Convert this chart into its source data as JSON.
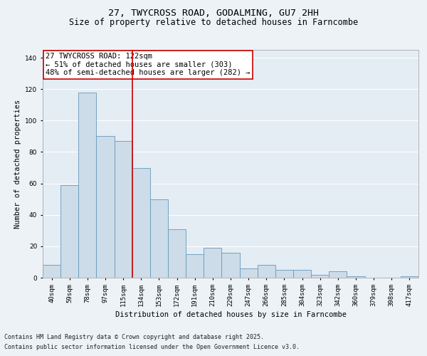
{
  "title": "27, TWYCROSS ROAD, GODALMING, GU7 2HH",
  "subtitle": "Size of property relative to detached houses in Farncombe",
  "xlabel": "Distribution of detached houses by size in Farncombe",
  "ylabel": "Number of detached properties",
  "categories": [
    "40sqm",
    "59sqm",
    "78sqm",
    "97sqm",
    "115sqm",
    "134sqm",
    "153sqm",
    "172sqm",
    "191sqm",
    "210sqm",
    "229sqm",
    "247sqm",
    "266sqm",
    "285sqm",
    "304sqm",
    "323sqm",
    "342sqm",
    "360sqm",
    "379sqm",
    "398sqm",
    "417sqm"
  ],
  "values": [
    8,
    59,
    118,
    90,
    87,
    70,
    50,
    31,
    15,
    19,
    16,
    6,
    8,
    5,
    5,
    2,
    4,
    1,
    0,
    0,
    1
  ],
  "bar_color": "#ccdce8",
  "bar_edge_color": "#6699bb",
  "vline_x": 4.5,
  "vline_color": "#cc0000",
  "annotation_text": "27 TWYCROSS ROAD: 122sqm\n← 51% of detached houses are smaller (303)\n48% of semi-detached houses are larger (282) →",
  "annotation_box_color": "#ffffff",
  "annotation_box_edge": "#cc0000",
  "ylim": [
    0,
    145
  ],
  "yticks": [
    0,
    20,
    40,
    60,
    80,
    100,
    120,
    140
  ],
  "footer_line1": "Contains HM Land Registry data © Crown copyright and database right 2025.",
  "footer_line2": "Contains public sector information licensed under the Open Government Licence v3.0.",
  "bg_color": "#edf2f7",
  "plot_bg_color": "#e4ecf4",
  "grid_color": "#ffffff",
  "title_fontsize": 9.5,
  "subtitle_fontsize": 8.5,
  "axis_label_fontsize": 7.5,
  "tick_fontsize": 6.5,
  "annotation_fontsize": 7.5,
  "footer_fontsize": 6.0
}
